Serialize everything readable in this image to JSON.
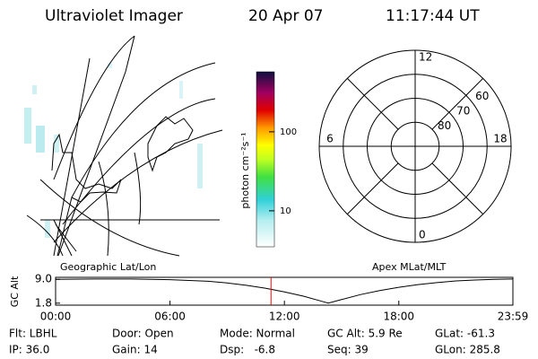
{
  "header": {
    "instrument": "Ultraviolet Imager",
    "date": "20 Apr 07",
    "time": "11:17:44 UT"
  },
  "map_panel": {
    "label": "Geographic Lat/Lon"
  },
  "colorbar": {
    "label": "photon cm⁻²s⁻¹",
    "scale": "log",
    "lim": [
      3.5,
      575
    ],
    "ticks": [
      10,
      100
    ]
  },
  "polar_panel": {
    "label": "Apex MLat/MLT",
    "lat_rings": [
      80,
      70,
      60
    ],
    "mlt_hours": [
      12,
      18,
      6,
      0
    ]
  },
  "altitude_plot": {
    "ylabel": "GC Alt",
    "xlim": [
      0,
      23.983
    ],
    "ylim": [
      1.2,
      9.6
    ],
    "yticks": [
      {
        "value": 9.0,
        "label": "9.0"
      },
      {
        "value": 1.8,
        "label": "1.8"
      }
    ],
    "xticks": [
      {
        "value": 0,
        "label": "00:00"
      },
      {
        "value": 6,
        "label": "06:00"
      },
      {
        "value": 12,
        "label": "12:00"
      },
      {
        "value": 18,
        "label": "18:00"
      },
      {
        "value": 23.983,
        "label": "23:59"
      }
    ],
    "x": [
      0,
      2,
      4,
      6,
      8,
      9,
      10,
      11,
      12,
      13,
      14,
      14.3,
      15,
      16,
      17,
      18,
      19,
      20,
      21,
      22,
      23,
      23.983
    ],
    "values": [
      9.0,
      9.1,
      9.1,
      8.9,
      8.4,
      7.9,
      7.2,
      6.3,
      5.2,
      3.9,
      2.3,
      1.8,
      2.9,
      4.4,
      5.6,
      6.6,
      7.4,
      8.0,
      8.5,
      8.8,
      9.0,
      9.1
    ],
    "current_time": 11.296,
    "current_time_color": "#ff0000"
  },
  "footer": {
    "rows": [
      [
        "Flt: LBHL",
        "Door: Open",
        "Mode: Normal",
        "GC Alt: 5.9 Re",
        "GLat: -61.3"
      ],
      [
        "IP: 36.0",
        "Gain: 14",
        "Dsp:   -6.8",
        "Seq: 39",
        "GLon: 285.8"
      ]
    ]
  }
}
